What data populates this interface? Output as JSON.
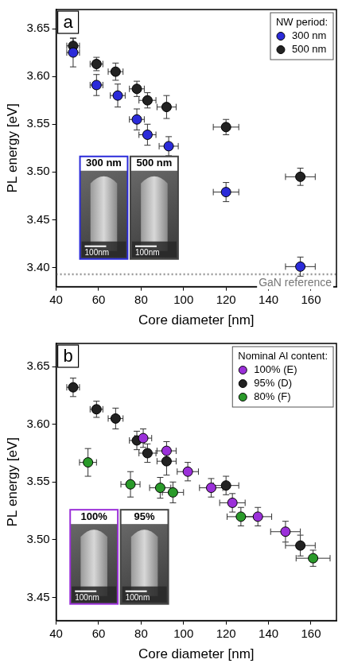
{
  "chart_data": [
    {
      "type": "scatter",
      "panel_label": "a",
      "x_label": "Core diameter [nm]",
      "y_label": "PL energy [eV]",
      "xlim": [
        40,
        172
      ],
      "xticks": [
        40,
        60,
        80,
        100,
        120,
        140,
        160
      ],
      "ylim": [
        3.38,
        3.67
      ],
      "yticks": [
        {
          "value": 3.4,
          "label": "3.40"
        },
        {
          "value": 3.45,
          "label": "3.45"
        },
        {
          "value": 3.5,
          "label": "3.50"
        },
        {
          "value": 3.55,
          "label": "3.55"
        },
        {
          "value": 3.6,
          "label": "3.60"
        },
        {
          "value": 3.65,
          "label": "3.65"
        }
      ],
      "grid": false,
      "legend": "upper right",
      "legend_title": "NW period:",
      "marker": "circle",
      "reference_line": {
        "text": "GaN reference",
        "y": 3.393,
        "line_style": "dotted",
        "color": "#999999"
      },
      "insets": [
        {
          "label": "300 nm",
          "scale_bar": "100nm",
          "color": "#2b2bd9"
        },
        {
          "label": "500 nm",
          "scale_bar": "100nm",
          "color": "#444444"
        }
      ],
      "series": [
        {
          "name": "300 nm",
          "color": "#2b2bd9",
          "x": [
            48,
            59,
            69,
            78,
            83,
            93,
            120,
            155
          ],
          "values": [
            3.625,
            3.591,
            3.58,
            3.555,
            3.539,
            3.527,
            3.479,
            3.401
          ],
          "x_err": [
            3,
            3,
            3.5,
            3.5,
            4,
            4.5,
            6,
            7
          ],
          "y_err": [
            0.015,
            0.011,
            0.012,
            0.011,
            0.011,
            0.01,
            0.01,
            0.01
          ]
        },
        {
          "name": "500 nm",
          "color": "#222222",
          "x": [
            48,
            59,
            68,
            78,
            83,
            92,
            120,
            155
          ],
          "values": [
            3.632,
            3.613,
            3.605,
            3.587,
            3.575,
            3.568,
            3.547,
            3.495
          ],
          "x_err": [
            3,
            3,
            3.5,
            3.5,
            4,
            4.5,
            6,
            7
          ],
          "y_err": [
            0.008,
            0.007,
            0.009,
            0.008,
            0.008,
            0.012,
            0.008,
            0.009
          ]
        }
      ]
    },
    {
      "type": "scatter",
      "panel_label": "b",
      "x_label": "Core diameter [nm]",
      "y_label": "PL energy [eV]",
      "xlim": [
        40,
        172
      ],
      "xticks": [
        40,
        60,
        80,
        100,
        120,
        140,
        160
      ],
      "ylim": [
        3.43,
        3.67
      ],
      "yticks": [
        {
          "value": 3.45,
          "label": "3.45"
        },
        {
          "value": 3.5,
          "label": "3.50"
        },
        {
          "value": 3.55,
          "label": "3.55"
        },
        {
          "value": 3.6,
          "label": "3.60"
        },
        {
          "value": 3.65,
          "label": "3.65"
        }
      ],
      "grid": false,
      "legend": "upper right",
      "legend_title": "Nominal Al content:",
      "marker": "circle",
      "insets": [
        {
          "label": "100%",
          "scale_bar": "100nm",
          "color": "#9b30d9"
        },
        {
          "label": "95%",
          "scale_bar": "100nm",
          "color": "#444444"
        }
      ],
      "series": [
        {
          "name": "100% (E)",
          "color": "#9b30d9",
          "x": [
            81,
            92,
            102,
            113,
            123,
            135,
            148
          ],
          "values": [
            3.588,
            3.577,
            3.559,
            3.545,
            3.532,
            3.52,
            3.507
          ],
          "x_err": [
            4,
            4.5,
            5,
            5.5,
            6,
            6.5,
            7
          ],
          "y_err": [
            0.008,
            0.008,
            0.008,
            0.008,
            0.008,
            0.008,
            0.009
          ]
        },
        {
          "name": "95% (D)",
          "color": "#222222",
          "x": [
            48,
            59,
            68,
            78,
            83,
            92,
            120,
            155
          ],
          "values": [
            3.632,
            3.613,
            3.605,
            3.586,
            3.575,
            3.568,
            3.547,
            3.495
          ],
          "x_err": [
            3,
            3,
            3.5,
            3.5,
            4,
            4.5,
            6,
            7
          ],
          "y_err": [
            0.008,
            0.007,
            0.009,
            0.008,
            0.008,
            0.012,
            0.008,
            0.009
          ]
        },
        {
          "name": "80% (F)",
          "color": "#2a9a2a",
          "x": [
            55,
            75,
            89,
            95,
            127,
            161
          ],
          "values": [
            3.567,
            3.548,
            3.545,
            3.541,
            3.52,
            3.484
          ],
          "x_err": [
            4,
            4.5,
            5,
            5,
            6.5,
            8
          ],
          "y_err": [
            0.012,
            0.011,
            0.009,
            0.009,
            0.008,
            0.007
          ]
        }
      ]
    }
  ]
}
